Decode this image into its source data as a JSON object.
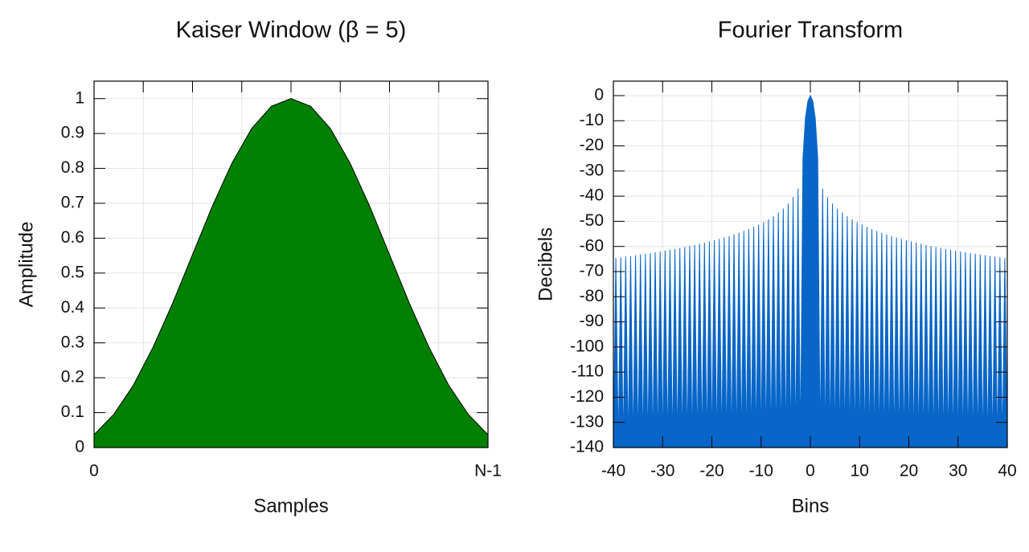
{
  "chart_data": [
    {
      "type": "area",
      "title": "Kaiser Window (β = 5)",
      "x_label": "Samples",
      "y_label": "Amplitude",
      "color": "#008000",
      "grid": true,
      "x": [
        0,
        2,
        4,
        6,
        8,
        10,
        12,
        14,
        16,
        18,
        20,
        22,
        24,
        26,
        28,
        30,
        32,
        34,
        36,
        38,
        40
      ],
      "values": [
        0.037,
        0.095,
        0.179,
        0.288,
        0.415,
        0.553,
        0.691,
        0.815,
        0.914,
        0.978,
        1,
        0.978,
        0.914,
        0.815,
        0.691,
        0.553,
        0.415,
        0.288,
        0.179,
        0.095,
        0.037
      ],
      "xlim": [
        0,
        40
      ],
      "xticks": [
        0,
        {
          "value": 40,
          "label": "N-1"
        }
      ],
      "ylim": [
        0,
        1.05
      ],
      "yticks": [
        0,
        0.1,
        0.2,
        0.3,
        0.4,
        0.5,
        0.6,
        0.7,
        0.8,
        0.9,
        1
      ]
    },
    {
      "type": "area",
      "title": "Fourier Transform",
      "x_label": "Bins",
      "y_label": "Decibels",
      "color": "#0866c8",
      "grid": true,
      "x": [
        -40,
        -39.5,
        -39,
        -38.5,
        -38,
        -37.5,
        -37,
        -36.5,
        -36,
        -35.5,
        -35,
        -34.5,
        -34,
        -33.5,
        -33,
        -32.5,
        -32,
        -31.5,
        -31,
        -30.5,
        -30,
        -29.5,
        -29,
        -28.5,
        -28,
        -27.5,
        -27,
        -26.5,
        -26,
        -25.5,
        -25,
        -24.5,
        -24,
        -23.5,
        -23,
        -22.5,
        -22,
        -21.5,
        -21,
        -20.5,
        -20,
        -19.5,
        -19,
        -18.5,
        -18,
        -17.5,
        -17,
        -16.5,
        -16,
        -15.5,
        -15,
        -14.5,
        -14,
        -13.5,
        -13,
        -12.5,
        -12,
        -11.5,
        -11,
        -10.5,
        -10,
        -9.5,
        -9,
        -8.5,
        -8,
        -7.5,
        -7,
        -6.5,
        -6,
        -5.5,
        -5,
        -4.5,
        -4,
        -3.5,
        -3,
        -2.5,
        -2,
        -1.5,
        -1,
        -0.5,
        0,
        0.5,
        1,
        1.5,
        2,
        2.5,
        3,
        3.5,
        4,
        4.5,
        5,
        5.5,
        6,
        6.5,
        7,
        7.5,
        8,
        8.5,
        9,
        9.5,
        10,
        10.5,
        11,
        11.5,
        12,
        12.5,
        13,
        13.5,
        14,
        14.5,
        15,
        15.5,
        16,
        16.5,
        17,
        17.5,
        18,
        18.5,
        19,
        19.5,
        20,
        20.5,
        21,
        21.5,
        22,
        22.5,
        23,
        23.5,
        24,
        24.5,
        25,
        25.5,
        26,
        26.5,
        27,
        27.5,
        28,
        28.5,
        29,
        29.5,
        30,
        30.5,
        31,
        31.5,
        32,
        32.5,
        33,
        33.5,
        34,
        34.5,
        35,
        35.5,
        36,
        36.5,
        37,
        37.5,
        38,
        38.5,
        39,
        39.5,
        40
      ],
      "values": [
        -140,
        -64.6,
        -140,
        -64.3,
        -140,
        -64.0,
        -140,
        -63.8,
        -140,
        -63.5,
        -140,
        -63.2,
        -140,
        -62.9,
        -140,
        -62.6,
        -140,
        -62.3,
        -140,
        -62.0,
        -140,
        -61.7,
        -140,
        -61.3,
        -140,
        -61.0,
        -140,
        -60.6,
        -140,
        -60.2,
        -140,
        -59.8,
        -140,
        -59.4,
        -140,
        -58.9,
        -140,
        -58.5,
        -140,
        -58.0,
        -140,
        -57.5,
        -140,
        -57.0,
        -140,
        -56.4,
        -140,
        -55.9,
        -140,
        -55.2,
        -140,
        -54.6,
        -140,
        -53.8,
        -140,
        -53.1,
        -140,
        -52.2,
        -140,
        -51.3,
        -140,
        -50.3,
        -140,
        -49.2,
        -140,
        -48.0,
        -140,
        -46.5,
        -140,
        -44.9,
        -140,
        -42.9,
        -140,
        -40.4,
        -140,
        -37,
        -140,
        -25,
        -9,
        -2.2,
        0,
        -2.2,
        -9,
        -25,
        -140,
        -37,
        -140,
        -40.4,
        -140,
        -42.9,
        -140,
        -44.9,
        -140,
        -46.5,
        -140,
        -48.0,
        -140,
        -49.2,
        -140,
        -50.3,
        -140,
        -51.3,
        -140,
        -52.2,
        -140,
        -53.1,
        -140,
        -53.8,
        -140,
        -54.6,
        -140,
        -55.2,
        -140,
        -55.9,
        -140,
        -56.4,
        -140,
        -57.0,
        -140,
        -57.5,
        -140,
        -58.0,
        -140,
        -58.5,
        -140,
        -58.9,
        -140,
        -59.4,
        -140,
        -59.8,
        -140,
        -60.2,
        -140,
        -60.6,
        -140,
        -61.0,
        -140,
        -61.3,
        -140,
        -61.7,
        -140,
        -62.0,
        -140,
        -62.3,
        -140,
        -62.6,
        -140,
        -62.9,
        -140,
        -63.2,
        -140,
        -63.5,
        -140,
        -63.8,
        -140,
        -64.0,
        -140,
        -64.3,
        -140,
        -64.6,
        -140
      ],
      "xlim": [
        -40,
        40
      ],
      "xticks": [
        -40,
        -30,
        -20,
        -10,
        0,
        10,
        20,
        30,
        40
      ],
      "ylim": [
        -140,
        5.75
      ],
      "yticks": [
        0,
        -10,
        -20,
        -30,
        -40,
        -50,
        -60,
        -70,
        -80,
        -90,
        -100,
        -110,
        -120,
        -130,
        -140
      ]
    }
  ]
}
